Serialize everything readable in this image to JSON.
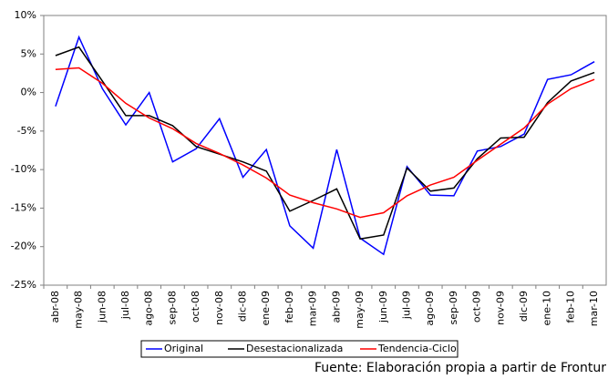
{
  "chart_data": {
    "type": "line",
    "categories": [
      "abr-08",
      "may-08",
      "jun-08",
      "jul-08",
      "ago-08",
      "sep-08",
      "oct-08",
      "nov-08",
      "dic-08",
      "ene-09",
      "feb-09",
      "mar-09",
      "abr-09",
      "may-09",
      "jun-09",
      "jul-09",
      "ago-09",
      "sep-09",
      "oct-09",
      "nov-09",
      "dic-09",
      "ene-10",
      "feb-10",
      "mar-10"
    ],
    "series": [
      {
        "name": "Original",
        "color": "#0000ff",
        "values": [
          -1.8,
          7.2,
          0.5,
          -4.2,
          0,
          -9,
          -7.3,
          -3.4,
          -11,
          -7.4,
          -17.3,
          -20.2,
          -7.4,
          -18.9,
          -21,
          -9.6,
          -13.3,
          -13.4,
          -7.6,
          -7,
          -5.4,
          1.7,
          2.3,
          4.0
        ]
      },
      {
        "name": "Desestacionalizada",
        "color": "#000000",
        "values": [
          4.8,
          5.9,
          1.5,
          -3,
          -3,
          -4.3,
          -7,
          -8,
          -9,
          -10.2,
          -15.4,
          -14,
          -12.5,
          -19,
          -18.5,
          -9.8,
          -12.8,
          -12.4,
          -8.6,
          -5.9,
          -5.8,
          -1.3,
          1.5,
          2.6
        ]
      },
      {
        "name": "Tendencia-Ciclo",
        "color": "#ff0000",
        "values": [
          3.0,
          3.2,
          1.2,
          -1.4,
          -3.3,
          -4.7,
          -6.6,
          -7.9,
          -9.4,
          -11.1,
          -13.3,
          -14.3,
          -15.1,
          -16.2,
          -15.6,
          -13.4,
          -12,
          -11,
          -8.8,
          -6.7,
          -4.6,
          -1.5,
          0.5,
          1.7
        ]
      }
    ],
    "ylim": [
      -25,
      10
    ],
    "yticks": [
      {
        "value": -25,
        "label": "-25%"
      },
      {
        "value": -20,
        "label": "-20%"
      },
      {
        "value": -15,
        "label": "-15%"
      },
      {
        "value": -10,
        "label": "-10%"
      },
      {
        "value": -5,
        "label": "-5%"
      },
      {
        "value": 0,
        "label": "0%"
      },
      {
        "value": 5,
        "label": "5%"
      },
      {
        "value": 10,
        "label": "10%"
      }
    ],
    "grid": false,
    "legend": "bottom",
    "source": "Fuente: Elaboración propia a partir de Frontur"
  }
}
